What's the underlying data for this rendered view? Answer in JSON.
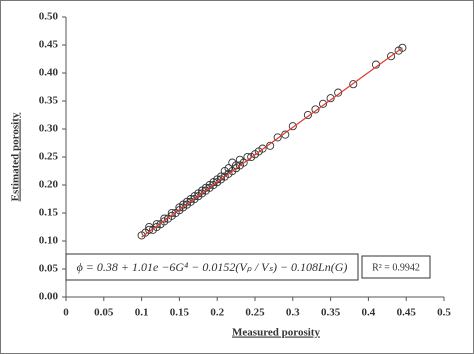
{
  "chart_data": {
    "type": "scatter",
    "x_label": "Measured porosity",
    "y_label": "Estimated porosity",
    "x": [
      0.1,
      0.105,
      0.11,
      0.11,
      0.115,
      0.12,
      0.12,
      0.125,
      0.13,
      0.13,
      0.135,
      0.14,
      0.14,
      0.145,
      0.15,
      0.15,
      0.155,
      0.155,
      0.16,
      0.16,
      0.165,
      0.165,
      0.17,
      0.17,
      0.175,
      0.175,
      0.18,
      0.18,
      0.185,
      0.185,
      0.19,
      0.19,
      0.195,
      0.195,
      0.2,
      0.2,
      0.205,
      0.205,
      0.21,
      0.21,
      0.215,
      0.215,
      0.22,
      0.22,
      0.225,
      0.225,
      0.23,
      0.23,
      0.235,
      0.24,
      0.245,
      0.25,
      0.255,
      0.26,
      0.27,
      0.28,
      0.29,
      0.3,
      0.32,
      0.33,
      0.34,
      0.35,
      0.36,
      0.38,
      0.41,
      0.43,
      0.44,
      0.445
    ],
    "values": [
      0.11,
      0.115,
      0.12,
      0.125,
      0.12,
      0.13,
      0.125,
      0.13,
      0.135,
      0.14,
      0.14,
      0.145,
      0.15,
      0.15,
      0.155,
      0.16,
      0.16,
      0.165,
      0.165,
      0.17,
      0.17,
      0.175,
      0.18,
      0.175,
      0.185,
      0.18,
      0.19,
      0.185,
      0.195,
      0.19,
      0.2,
      0.195,
      0.205,
      0.2,
      0.21,
      0.205,
      0.215,
      0.21,
      0.225,
      0.215,
      0.23,
      0.22,
      0.24,
      0.225,
      0.235,
      0.23,
      0.245,
      0.235,
      0.24,
      0.25,
      0.25,
      0.255,
      0.26,
      0.265,
      0.27,
      0.285,
      0.29,
      0.305,
      0.325,
      0.335,
      0.345,
      0.355,
      0.365,
      0.38,
      0.415,
      0.43,
      0.44,
      0.445
    ],
    "color": "#333333",
    "trendline": {
      "x": [
        0.1,
        0.445
      ],
      "values": [
        0.107,
        0.445
      ],
      "color": "#e0392b"
    },
    "equation": "ϕ = 0.38 + 1.01e −6G⁴ − 0.0152(Vₚ / Vₛ) − 0.108Ln(G)",
    "r_squared": "R² = 0.9942",
    "xlim": [
      0,
      0.5
    ],
    "ylim": [
      0,
      0.5
    ],
    "xticks": [
      0,
      0.05,
      0.1,
      0.15,
      0.2,
      0.25,
      0.3,
      0.35,
      0.4,
      0.45,
      0.5
    ],
    "yticks": [
      {
        "value": 0,
        "label": "0.00"
      },
      {
        "value": 0.05,
        "label": "0.05"
      },
      {
        "value": 0.1,
        "label": "0.10"
      },
      {
        "value": 0.15,
        "label": "0.15"
      },
      {
        "value": 0.2,
        "label": "0.20"
      },
      {
        "value": 0.25,
        "label": "0.25"
      },
      {
        "value": 0.3,
        "label": "0.30"
      },
      {
        "value": 0.35,
        "label": "0.35"
      },
      {
        "value": 0.4,
        "label": "0.40"
      },
      {
        "value": 0.45,
        "label": "0.45"
      },
      {
        "value": 0.5,
        "label": "0.50"
      }
    ],
    "grid": false
  }
}
